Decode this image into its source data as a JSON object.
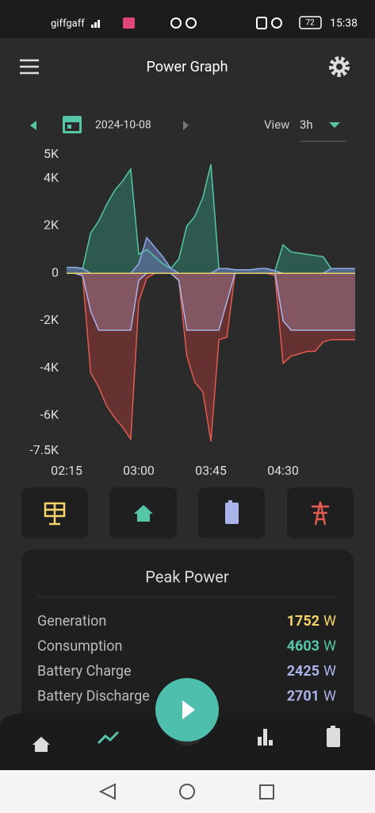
{
  "status_bar": {
    "carrier": "giffgaff",
    "battery": "72",
    "time": "15:38"
  },
  "header": {
    "title": "Power Graph"
  },
  "toolbar": {
    "date": "2024-10-08",
    "view_label": "View",
    "view_value": "3h"
  },
  "chart_data": {
    "type": "area",
    "x": [
      135,
      140,
      145,
      150,
      155,
      160,
      165,
      170,
      175,
      180,
      185,
      190,
      195,
      200,
      205,
      210,
      215,
      220,
      225,
      230,
      235,
      240,
      245,
      250,
      255,
      260,
      265,
      270,
      275,
      280,
      285,
      290,
      295,
      300,
      305,
      310,
      315
    ],
    "xlim": [
      135,
      315
    ],
    "xticks": [
      {
        "value": 135,
        "label": "02:15"
      },
      {
        "value": 180,
        "label": "03:00"
      },
      {
        "value": 225,
        "label": "03:45"
      },
      {
        "value": 270,
        "label": "04:30"
      }
    ],
    "ylim": [
      -7500,
      5000
    ],
    "yticks": [
      {
        "value": 5000,
        "label": "5K"
      },
      {
        "value": 4000,
        "label": "4K"
      },
      {
        "value": 2000,
        "label": "2K"
      },
      0,
      {
        "value": -2000,
        "label": "-2K"
      },
      {
        "value": -4000,
        "label": "-4K"
      },
      {
        "value": -6000,
        "label": "-6K"
      },
      {
        "value": -7500,
        "label": "-7.5K"
      }
    ],
    "series": [
      {
        "color": "#e25b50",
        "fill": "#7a3434",
        "values": [
          0,
          0,
          -100,
          -4200,
          -4800,
          -5600,
          -6100,
          -6500,
          -7000,
          -1200,
          -200,
          0,
          0,
          0,
          -300,
          -3500,
          -4600,
          -5000,
          -7100,
          -2800,
          -2700,
          0,
          0,
          0,
          0,
          0,
          -100,
          -3800,
          -3500,
          -3400,
          -3300,
          -3300,
          -2900,
          -2800,
          -2800,
          -2800,
          -2800
        ]
      },
      {
        "color": "#aab4ea",
        "fill": "#8e6473",
        "values": [
          0,
          0,
          -100,
          -1600,
          -2400,
          -2400,
          -2400,
          -2400,
          -2400,
          -300,
          0,
          0,
          0,
          0,
          -300,
          -2400,
          -2400,
          -2400,
          -2400,
          -2400,
          -1200,
          0,
          0,
          0,
          0,
          0,
          0,
          -2000,
          -2400,
          -2400,
          -2400,
          -2400,
          -2400,
          -2400,
          -2400,
          -2400,
          -2400
        ]
      },
      {
        "color": "#55c7a6",
        "fill": "#2f6a5b",
        "values": [
          250,
          250,
          200,
          1700,
          2200,
          2900,
          3500,
          3900,
          4400,
          800,
          1000,
          700,
          400,
          200,
          600,
          2000,
          2400,
          3200,
          4600,
          200,
          200,
          150,
          150,
          150,
          200,
          200,
          100,
          1200,
          900,
          850,
          800,
          750,
          700,
          200,
          200,
          200,
          200
        ]
      },
      {
        "color": "#8fa8e8",
        "fill": "#5d6d9a",
        "values": [
          250,
          250,
          200,
          0,
          0,
          0,
          0,
          0,
          0,
          400,
          1500,
          1100,
          700,
          200,
          0,
          0,
          0,
          0,
          0,
          200,
          200,
          150,
          150,
          150,
          200,
          200,
          100,
          0,
          0,
          0,
          0,
          0,
          0,
          200,
          200,
          200,
          200
        ]
      },
      {
        "color": "#e8d36a",
        "fill": "#e8d36a",
        "values": [
          0,
          0,
          0,
          0,
          0,
          0,
          0,
          0,
          0,
          0,
          0,
          0,
          0,
          0,
          0,
          0,
          0,
          0,
          0,
          0,
          0,
          0,
          0,
          0,
          0,
          0,
          0,
          0,
          0,
          0,
          0,
          0,
          0,
          0,
          0,
          0,
          0
        ]
      }
    ]
  },
  "peak_power": {
    "title": "Peak Power",
    "unit": "W",
    "rows": [
      {
        "label": "Generation",
        "value": 1752,
        "color": "#f6d36b"
      },
      {
        "label": "Consumption",
        "value": 4603,
        "color": "#55c7a6"
      },
      {
        "label": "Battery Charge",
        "value": 2425,
        "color": "#aab4ea"
      },
      {
        "label": "Battery Discharge",
        "value": 2701,
        "color": "#aab4ea"
      }
    ]
  }
}
